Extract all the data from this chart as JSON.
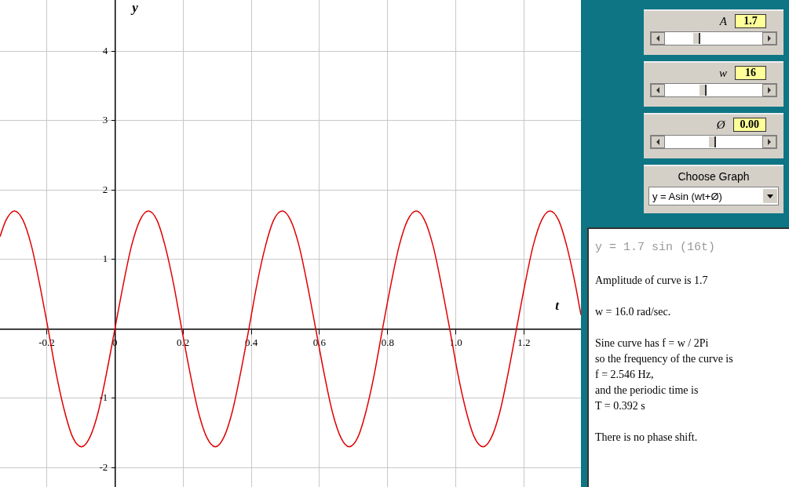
{
  "chart_data": {
    "type": "line",
    "xlabel": "t",
    "ylabel": "y",
    "xlim": [
      -0.337,
      1.367
    ],
    "ylim": [
      -2.28,
      4.74
    ],
    "xticks": [
      -0.2,
      0,
      0.2,
      0.4,
      0.6,
      0.8,
      {
        "value": 1,
        "label": "1.0"
      },
      1.2
    ],
    "yticks": [
      -2,
      -1,
      {
        "value": 0,
        "label": null
      },
      1,
      2,
      3,
      4
    ],
    "grid": true,
    "marker": "none",
    "line_style": "solid",
    "series": [
      {
        "color": "#e00000",
        "x": [
          -0.337,
          -0.319,
          -0.295,
          -0.27,
          -0.245,
          -0.221,
          -0.196,
          -0.172,
          -0.147,
          -0.123,
          -0.098,
          -0.074,
          -0.049,
          -0.025,
          0,
          0.025,
          0.049,
          0.074,
          0.098,
          0.123,
          0.147,
          0.172,
          0.196,
          0.221,
          0.245,
          0.27,
          0.295,
          0.319,
          0.344,
          0.368,
          0.393,
          0.417,
          0.442,
          0.466,
          0.491,
          0.515,
          0.54,
          0.564,
          0.589,
          0.614,
          0.638,
          0.663,
          0.687,
          0.712,
          0.736,
          0.761,
          0.785,
          0.81,
          0.834,
          0.859,
          0.884,
          0.908,
          0.933,
          0.957,
          0.982,
          1.006,
          1.031,
          1.055,
          1.08,
          1.104,
          1.129,
          1.153,
          1.178,
          1.203,
          1.227,
          1.252,
          1.276,
          1.301,
          1.325,
          1.35,
          1.367
        ],
        "values": [
          1.33,
          1.57,
          1.7,
          1.57,
          1.2,
          0.65,
          0,
          -0.65,
          -1.2,
          -1.57,
          -1.7,
          -1.57,
          -1.2,
          -0.65,
          0,
          0.65,
          1.2,
          1.57,
          1.7,
          1.57,
          1.2,
          0.65,
          0,
          -0.65,
          -1.2,
          -1.57,
          -1.7,
          -1.57,
          -1.2,
          -0.65,
          0,
          0.65,
          1.2,
          1.57,
          1.7,
          1.57,
          1.2,
          0.65,
          0,
          -0.65,
          -1.2,
          -1.57,
          -1.7,
          -1.57,
          -1.2,
          -0.65,
          0,
          0.65,
          1.2,
          1.57,
          1.7,
          1.57,
          1.2,
          0.65,
          0,
          -0.65,
          -1.2,
          -1.57,
          -1.7,
          -1.57,
          -1.2,
          -0.65,
          0,
          0.65,
          1.2,
          1.57,
          1.7,
          1.57,
          1.2,
          0.65,
          0.2
        ]
      }
    ],
    "annotations": [
      "A",
      "1.7",
      "w",
      "16",
      "Ø",
      "0.00",
      "Choose Graph",
      "y = Asin (wt+Ø)",
      "y = 1.7 sin (16t)",
      "Amplitude of curve is 1.7",
      "w  = 16.0 rad/sec.",
      "Sine curve has f = w  / 2Pi",
      "so the frequency of the curve is",
      "f = 2.546 Hz,",
      "and the periodic time is",
      "T = 0.392 s",
      "There is no phase shift."
    ]
  }
}
